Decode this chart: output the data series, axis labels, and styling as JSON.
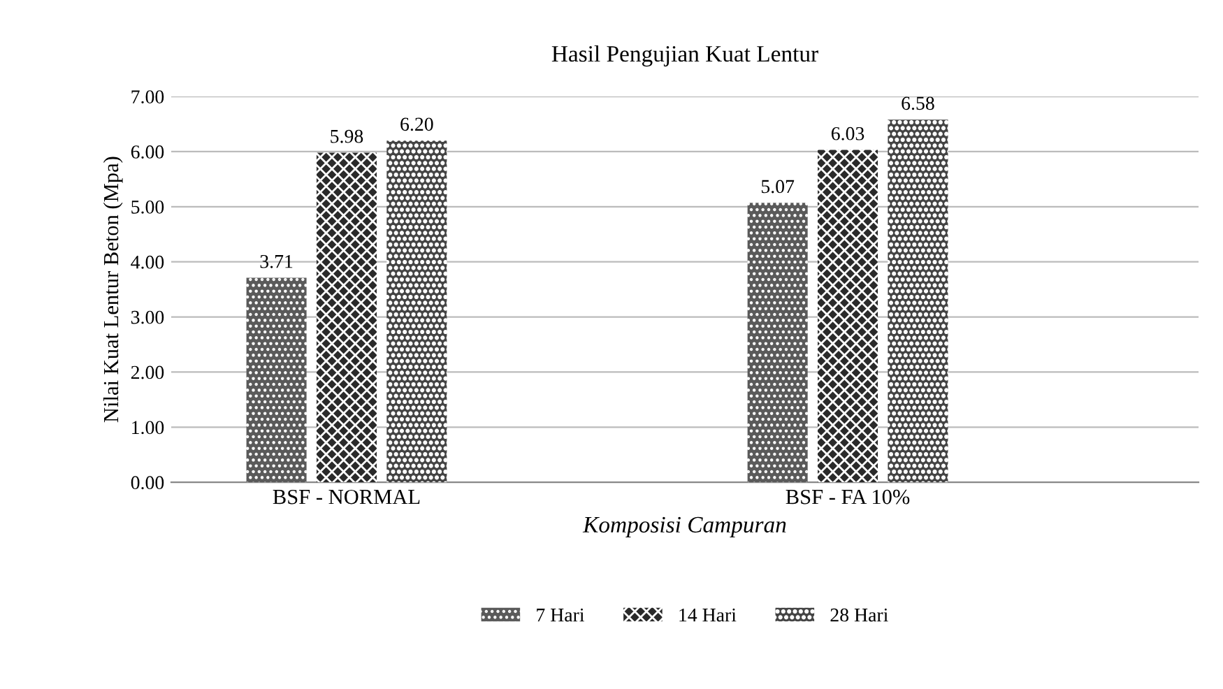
{
  "chart_data": {
    "type": "bar",
    "title": "Hasil Pengujian Kuat Lentur",
    "xlabel": "Komposisi Campuran",
    "ylabel": "Nilai Kuat Lentur Beton (Mpa)",
    "categories": [
      "BSF - NORMAL",
      "BSF - FA 10%"
    ],
    "series": [
      {
        "name": "7 Hari",
        "color": "#5a5a5a",
        "values": [
          3.71,
          5.07
        ],
        "value_labels": [
          "3.71",
          "5.07"
        ]
      },
      {
        "name": "14 Hari",
        "color": "#2a2a2a",
        "values": [
          5.98,
          6.03
        ],
        "value_labels": [
          "5.98",
          "6.03"
        ]
      },
      {
        "name": "28 Hari",
        "color": "#444444",
        "values": [
          6.2,
          6.58
        ],
        "value_labels": [
          "6.20",
          "6.58"
        ]
      }
    ],
    "ylim": [
      0,
      7
    ],
    "yticks": [
      {
        "value": 0,
        "label": "0.00"
      },
      {
        "value": 1,
        "label": "1.00"
      },
      {
        "value": 2,
        "label": "2.00"
      },
      {
        "value": 3,
        "label": "3.00"
      },
      {
        "value": 4,
        "label": "4.00"
      },
      {
        "value": 5,
        "label": "5.00"
      },
      {
        "value": 6,
        "label": "6.00"
      },
      {
        "value": 7,
        "label": "7.00"
      }
    ],
    "grid": "y",
    "legend": "bottom"
  }
}
